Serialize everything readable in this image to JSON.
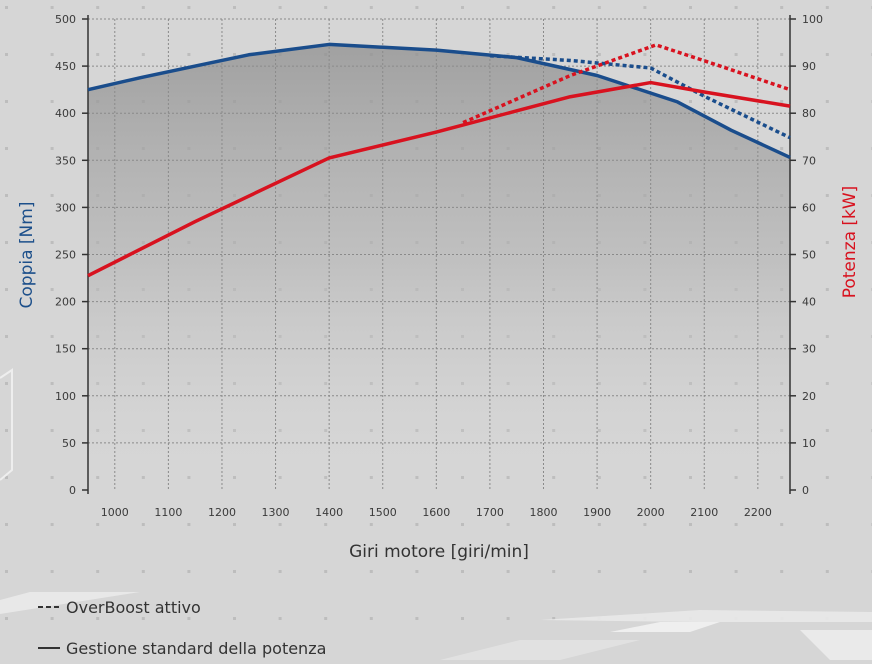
{
  "chart_data": {
    "type": "line",
    "xlabel": "Giri motore [giri/min]",
    "ylabel_left": "Coppia [Nm]",
    "ylabel_right": "Potenza [kW]",
    "x_ticks": [
      1000,
      1100,
      1200,
      1300,
      1400,
      1500,
      1600,
      1700,
      1800,
      1900,
      2000,
      2100,
      2200
    ],
    "xlim": [
      950,
      2260
    ],
    "y_left_ticks": [
      0,
      50,
      100,
      150,
      200,
      250,
      300,
      350,
      400,
      450,
      500
    ],
    "ylim_left": [
      0,
      500
    ],
    "y_right_ticks": [
      0,
      10,
      20,
      30,
      40,
      50,
      60,
      70,
      80,
      90,
      100
    ],
    "ylim_right": [
      0,
      100
    ],
    "grid": true,
    "series": [
      {
        "axis": "left",
        "color": "#1a4d8c",
        "style": "solid",
        "x": [
          950,
          1050,
          1150,
          1250,
          1400,
          1600,
          1750,
          1900,
          2050,
          2150,
          2260
        ],
        "y": [
          425,
          438,
          450,
          462,
          473,
          467,
          459,
          440,
          412,
          382,
          353
        ]
      },
      {
        "axis": "left",
        "color": "#1a4d8c",
        "style": "dashed",
        "x": [
          1700,
          1850,
          2000,
          2100,
          2260
        ],
        "y": [
          461,
          456,
          448,
          418,
          374
        ]
      },
      {
        "axis": "right",
        "color": "#d8121f",
        "style": "solid",
        "x": [
          950,
          1150,
          1400,
          1600,
          1750,
          1850,
          2000,
          2100,
          2260
        ],
        "y": [
          45.5,
          57,
          70.5,
          76,
          80.5,
          83.5,
          86.5,
          84.5,
          81.5
        ]
      },
      {
        "axis": "right",
        "color": "#d8121f",
        "style": "dashed",
        "x": [
          1650,
          1850,
          2010,
          2130,
          2260
        ],
        "y": [
          78,
          88,
          94.5,
          90,
          85
        ]
      }
    ],
    "legend": [
      {
        "label": "OverBoost attivo",
        "style": "dashed",
        "color": "#333333"
      },
      {
        "label": "Gestione standard della potenza",
        "style": "solid",
        "color": "#333333"
      }
    ]
  }
}
